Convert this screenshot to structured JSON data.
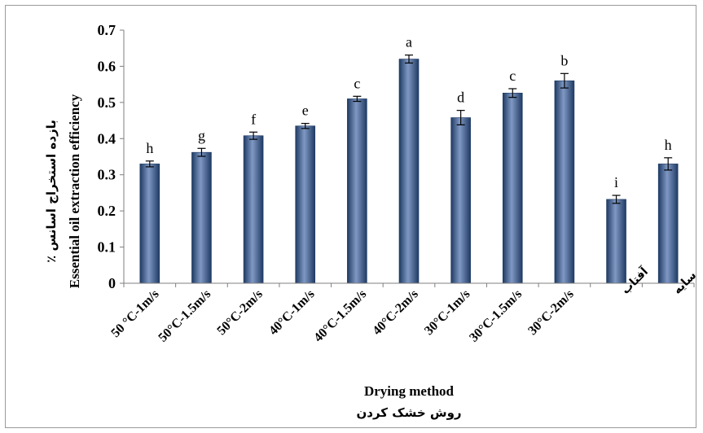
{
  "chart_data": {
    "type": "bar",
    "categories": [
      "50 °C-1m/s",
      "50°C-1.5m/s",
      "50°C-2m/s",
      "40°C-1m/s",
      "40°C-1.5m/s",
      "40°C-2m/s",
      "30°C-1m/s",
      "30°C-1.5m/s",
      "30°C-2m/s",
      "آفتاب",
      "سایه"
    ],
    "values": [
      0.33,
      0.362,
      0.408,
      0.435,
      0.51,
      0.62,
      0.458,
      0.526,
      0.56,
      0.232,
      0.33
    ],
    "errors": [
      0.008,
      0.011,
      0.01,
      0.007,
      0.007,
      0.011,
      0.02,
      0.012,
      0.02,
      0.011,
      0.017
    ],
    "significance_letters": [
      "h",
      "g",
      "f",
      "e",
      "c",
      "a",
      "d",
      "c",
      "b",
      "i",
      "h"
    ],
    "ylim": [
      0,
      0.7
    ],
    "yticks": [
      "0",
      "0.1",
      "0.2",
      "0.3",
      "0.4",
      "0.5",
      "0.6",
      "0.7"
    ],
    "xlabel": "Drying method",
    "xlabel_fa": "روش خشک کردن",
    "ylabel": "Essential oil extraction efficiency",
    "ylabel_fa": "بازده استخراج اسانس ٪",
    "grid": false,
    "bar_color": "#2f4f7f",
    "bar_highlight": "#8ea6cc"
  }
}
